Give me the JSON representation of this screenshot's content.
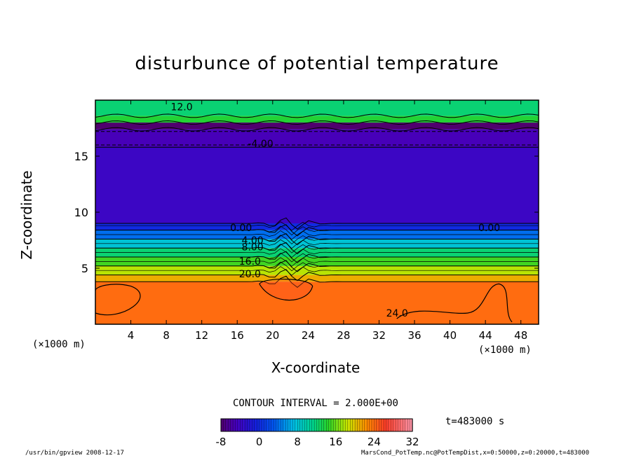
{
  "chart_data": {
    "type": "heatmap",
    "title": "disturbunce of potential temperature",
    "xlabel": "X-coordinate",
    "ylabel": "Z-coordinate",
    "x_unit_left": "(×1000 m)",
    "x_unit_right": "(×1000 m)",
    "xlim": [
      0,
      50
    ],
    "ylim": [
      0,
      20
    ],
    "x_ticks": [
      4,
      8,
      12,
      16,
      20,
      24,
      28,
      32,
      36,
      40,
      44,
      48
    ],
    "y_ticks": [
      5,
      10,
      15
    ],
    "contour_interval_text": "CONTOUR INTERVAL = 2.000E+00",
    "time_text": "t=483000 s",
    "contour_labels": [
      "12.0",
      "-4.00",
      "0.00",
      "4.00",
      "8.00",
      "16.0",
      "20.0",
      "24.0",
      "0.00"
    ],
    "colorbar": {
      "range": [
        -8,
        32
      ],
      "ticks": [
        -8,
        0,
        8,
        16,
        24,
        32
      ]
    },
    "layers": [
      {
        "z0": 0.0,
        "z1": 3.8,
        "value": 24
      },
      {
        "z0": 3.8,
        "z1": 4.4,
        "value": 21
      },
      {
        "z0": 4.4,
        "z1": 5.2,
        "value": 18
      },
      {
        "z0": 5.2,
        "z1": 6.0,
        "value": 15
      },
      {
        "z0": 6.0,
        "z1": 6.8,
        "value": 12
      },
      {
        "z0": 6.8,
        "z1": 7.6,
        "value": 8
      },
      {
        "z0": 7.6,
        "z1": 8.4,
        "value": 4
      },
      {
        "z0": 8.4,
        "z1": 9.0,
        "value": 0
      },
      {
        "z0": 9.0,
        "z1": 15.8,
        "value": -4
      },
      {
        "z0": 15.8,
        "z1": 17.4,
        "value": -5
      },
      {
        "z0": 17.4,
        "z1": 18.0,
        "value": -8
      },
      {
        "z0": 18.0,
        "z1": 18.6,
        "value": 14
      },
      {
        "z0": 18.6,
        "z1": 20.0,
        "value": 12
      }
    ]
  },
  "footer_left": "/usr/bin/gpview  2008-12-17",
  "footer_right": "MarsCond_PotTemp.nc@PotTempDist,x=0:50000,z=0:20000,t=483000"
}
